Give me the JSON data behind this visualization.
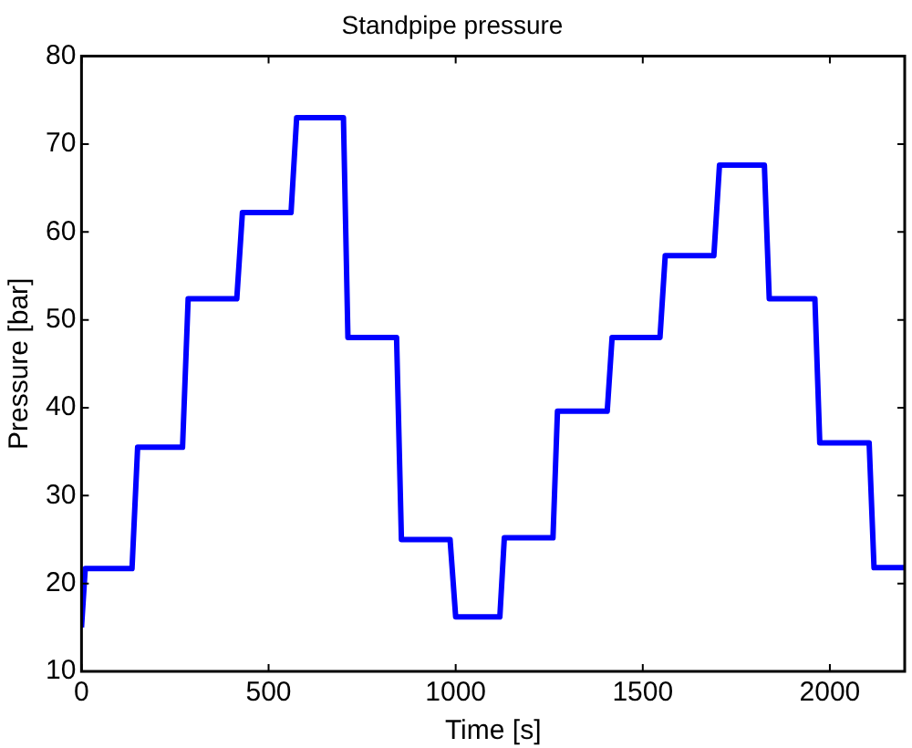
{
  "chart_data": {
    "type": "line",
    "title": "Standpipe pressure",
    "xlabel": "Time [s]",
    "ylabel": "Pressure [bar]",
    "xlim": [
      0,
      2200
    ],
    "xticks": [
      0,
      500,
      1000,
      1500,
      2000
    ],
    "ylim": [
      10,
      80
    ],
    "yticks": [
      10,
      20,
      30,
      40,
      50,
      60,
      70,
      80
    ],
    "grid": false,
    "legend": false,
    "marker": "none",
    "line_style": "solid",
    "series": [
      {
        "color": "#0000ff",
        "x": [
          0,
          10,
          135,
          150,
          270,
          285,
          415,
          430,
          560,
          575,
          700,
          712,
          842,
          855,
          985,
          1000,
          1118,
          1130,
          1260,
          1272,
          1405,
          1418,
          1546,
          1560,
          1690,
          1705,
          1825,
          1838,
          1960,
          1973,
          2105,
          2118,
          2200
        ],
        "values": [
          15,
          21.7,
          21.7,
          35.5,
          35.5,
          52.4,
          52.4,
          62.2,
          62.2,
          73,
          73,
          48,
          48,
          25,
          25,
          16.2,
          16.2,
          25.2,
          25.2,
          39.6,
          39.6,
          48,
          48,
          57.3,
          57.3,
          67.6,
          67.6,
          52.4,
          52.4,
          36,
          36,
          21.8,
          21.8
        ]
      }
    ]
  }
}
